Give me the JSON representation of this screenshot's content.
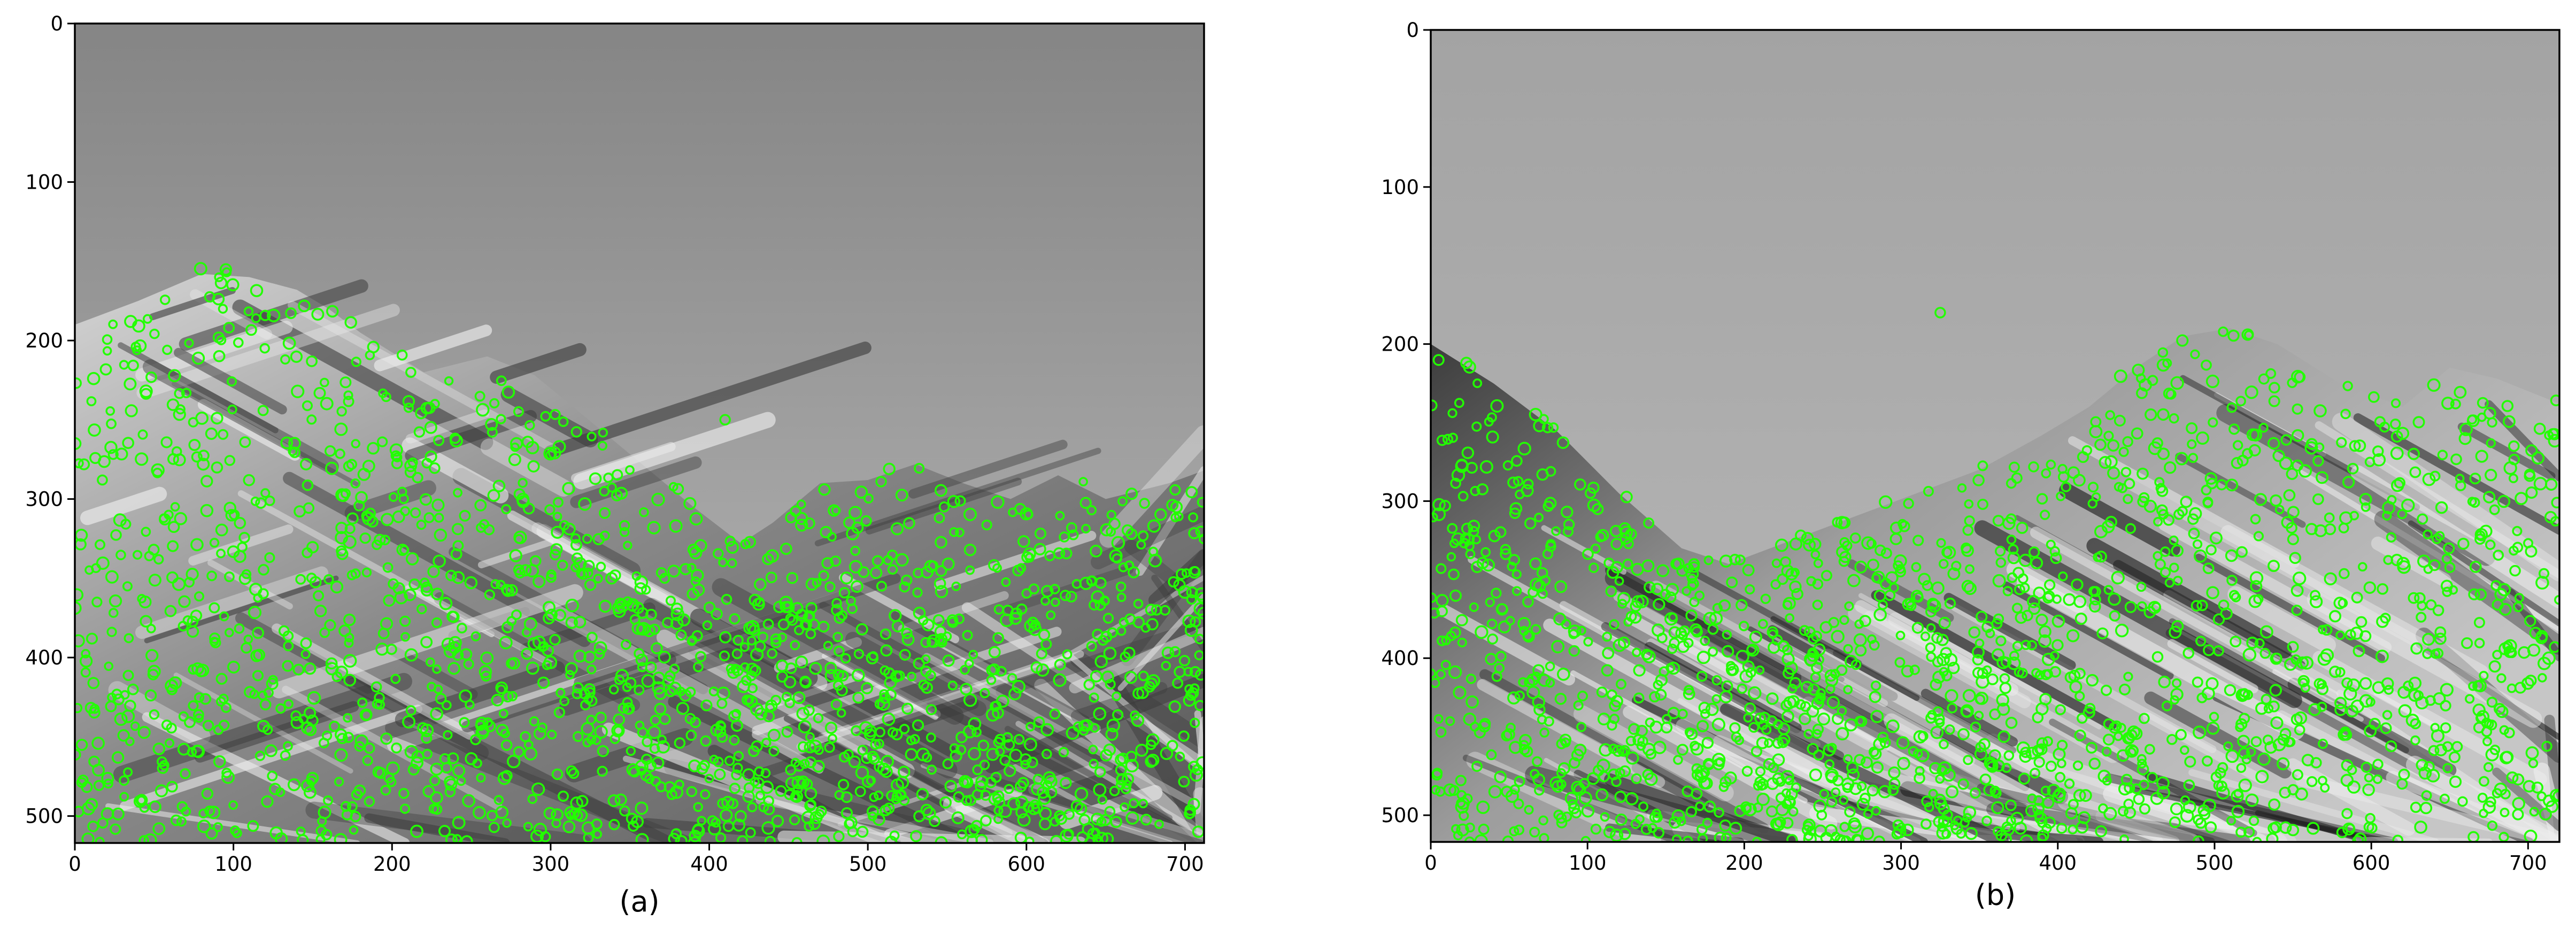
{
  "figure": {
    "panels": [
      {
        "id": "a",
        "caption": "(a)",
        "image_description": "Grayscale photograph of a snow-covered mountain ridge under a gray sky, overlaid with many small green circular keypoint markers clustered over the rocky slopes.",
        "x_ticks": [
          "0",
          "100",
          "200",
          "300",
          "400",
          "500",
          "600",
          "700"
        ],
        "y_ticks": [
          "0",
          "100",
          "200",
          "300",
          "400",
          "500"
        ],
        "x_range": [
          0,
          712
        ],
        "y_range": [
          0,
          517
        ],
        "ridge_profile": [
          [
            0,
            190
          ],
          [
            40,
            175
          ],
          [
            80,
            158
          ],
          [
            110,
            160
          ],
          [
            140,
            168
          ],
          [
            160,
            180
          ],
          [
            180,
            195
          ],
          [
            220,
            220
          ],
          [
            260,
            210
          ],
          [
            290,
            222
          ],
          [
            330,
            255
          ],
          [
            360,
            280
          ],
          [
            390,
            305
          ],
          [
            420,
            328
          ],
          [
            440,
            315
          ],
          [
            470,
            290
          ],
          [
            500,
            288
          ],
          [
            530,
            278
          ],
          [
            560,
            290
          ],
          [
            590,
            300
          ],
          [
            620,
            285
          ],
          [
            650,
            300
          ],
          [
            690,
            290
          ],
          [
            712,
            282
          ]
        ],
        "keypoint_region_top_offset": 0
      },
      {
        "id": "b",
        "caption": "(b)",
        "image_description": "Grayscale photograph of a mountain range viewed from a different angle, with a peak on the right and a dark slope descending from the upper left, overlaid with green circular keypoint markers.",
        "x_ticks": [
          "0",
          "100",
          "200",
          "300",
          "400",
          "500",
          "600",
          "700"
        ],
        "y_ticks": [
          "0",
          "100",
          "200",
          "300",
          "400",
          "500"
        ],
        "x_range": [
          0,
          720
        ],
        "y_range": [
          0,
          517
        ],
        "ridge_profile": [
          [
            0,
            200
          ],
          [
            40,
            225
          ],
          [
            80,
            255
          ],
          [
            120,
            295
          ],
          [
            160,
            330
          ],
          [
            190,
            340
          ],
          [
            230,
            325
          ],
          [
            270,
            310
          ],
          [
            310,
            295
          ],
          [
            350,
            280
          ],
          [
            390,
            258
          ],
          [
            420,
            240
          ],
          [
            450,
            215
          ],
          [
            480,
            195
          ],
          [
            510,
            190
          ],
          [
            540,
            200
          ],
          [
            580,
            225
          ],
          [
            620,
            240
          ],
          [
            650,
            215
          ],
          [
            680,
            222
          ],
          [
            720,
            238
          ]
        ],
        "keypoint_region_top_offset": 0
      }
    ],
    "keypoint_color": "#22ff00",
    "sky_color_top": "#8c8c8c",
    "sky_color_bottom": "#b4b4b4"
  }
}
